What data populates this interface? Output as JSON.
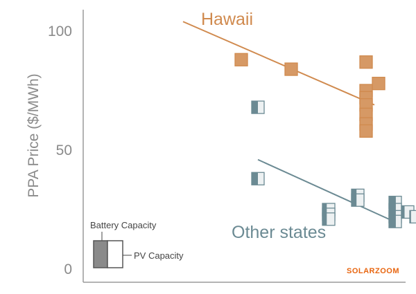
{
  "chart_data": {
    "type": "scatter",
    "ylabel": "PPA Price ($/MWh)",
    "xlabel": "",
    "ylim": [
      0,
      100
    ],
    "yticks": [
      0,
      50,
      100
    ],
    "grid": false,
    "series": [
      {
        "name": "Hawaii",
        "color": "#d08a4e",
        "points": [
          {
            "x": 1.9,
            "y": 88,
            "battery": 1.0
          },
          {
            "x": 2.5,
            "y": 84,
            "battery": 1.0
          },
          {
            "x": 3.4,
            "y": 87,
            "battery": 1.0
          },
          {
            "x": 3.55,
            "y": 78,
            "battery": 1.0
          },
          {
            "x": 3.4,
            "y": 75,
            "battery": 1.0
          },
          {
            "x": 3.4,
            "y": 72,
            "battery": 1.0
          },
          {
            "x": 3.4,
            "y": 69,
            "battery": 1.0
          },
          {
            "x": 3.4,
            "y": 65,
            "battery": 1.0
          },
          {
            "x": 3.4,
            "y": 61,
            "battery": 1.0
          },
          {
            "x": 3.4,
            "y": 58,
            "battery": 1.0
          }
        ],
        "trend": {
          "x": [
            1.2,
            3.5
          ],
          "y": [
            104,
            69
          ]
        }
      },
      {
        "name": "Other states",
        "color": "#6b8a93",
        "points": [
          {
            "x": 2.1,
            "y": 68,
            "battery": 0.5
          },
          {
            "x": 2.1,
            "y": 38,
            "battery": 0.5
          },
          {
            "x": 2.95,
            "y": 25,
            "battery": 0.35
          },
          {
            "x": 2.95,
            "y": 23,
            "battery": 0.35
          },
          {
            "x": 2.95,
            "y": 21,
            "battery": 0.35
          },
          {
            "x": 3.3,
            "y": 31,
            "battery": 0.4
          },
          {
            "x": 3.3,
            "y": 29,
            "battery": 0.4
          },
          {
            "x": 3.75,
            "y": 28,
            "battery": 0.55
          },
          {
            "x": 3.75,
            "y": 25,
            "battery": 0.55
          },
          {
            "x": 3.75,
            "y": 22,
            "battery": 0.55
          },
          {
            "x": 3.75,
            "y": 20,
            "battery": 0.55
          },
          {
            "x": 3.9,
            "y": 24,
            "battery": 0.25
          },
          {
            "x": 4.0,
            "y": 22,
            "battery": 0.1
          }
        ],
        "trend": {
          "x": [
            2.1,
            3.8
          ],
          "y": [
            46,
            19
          ]
        }
      }
    ],
    "legend": {
      "battery_label": "Battery Capacity",
      "pv_label": "PV Capacity",
      "placement": "bottom-left"
    }
  },
  "watermark": "SOLARZOOM"
}
